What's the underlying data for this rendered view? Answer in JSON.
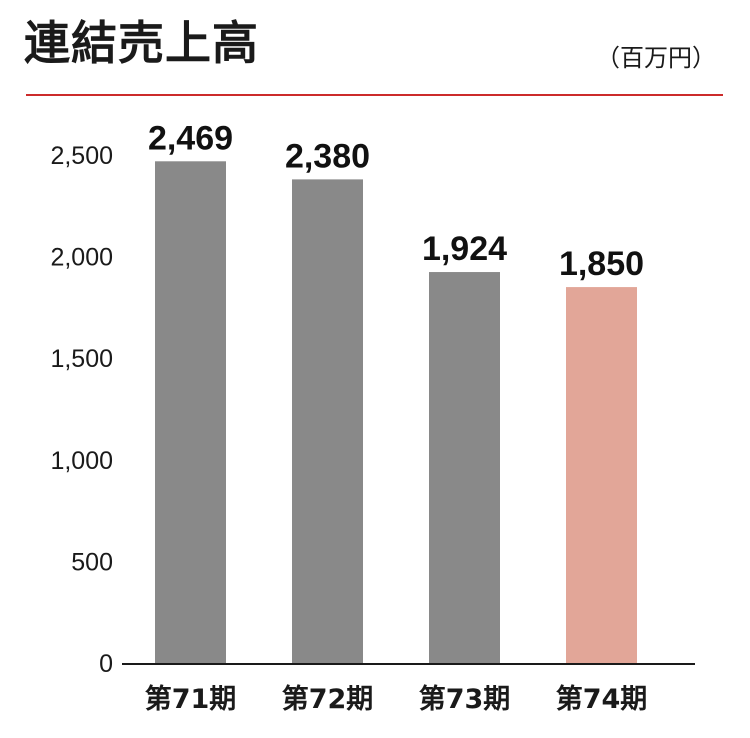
{
  "header": {
    "title": "連結売上高",
    "unit": "（百万円）"
  },
  "colors": {
    "rule": "#cc2b2b",
    "bar_default": "#898989",
    "bar_highlight": "#e2a698",
    "axis": "#1a1a1a"
  },
  "chart_data": {
    "type": "bar",
    "title": "連結売上高",
    "xlabel": "",
    "ylabel": "",
    "unit": "（百万円）",
    "categories": [
      "第71期",
      "第72期",
      "第73期",
      "第74期"
    ],
    "values": [
      2469,
      2380,
      1924,
      1850
    ],
    "value_labels": [
      "2,469",
      "2,380",
      "1,924",
      "1,850"
    ],
    "highlight_index": 3,
    "ylim": [
      0,
      2500
    ],
    "yticks": [
      0,
      500,
      1000,
      1500,
      2000,
      2500
    ],
    "ytick_labels": [
      "0",
      "500",
      "1,000",
      "1,500",
      "2,000",
      "2,500"
    ],
    "grid": false,
    "legend": "none"
  }
}
